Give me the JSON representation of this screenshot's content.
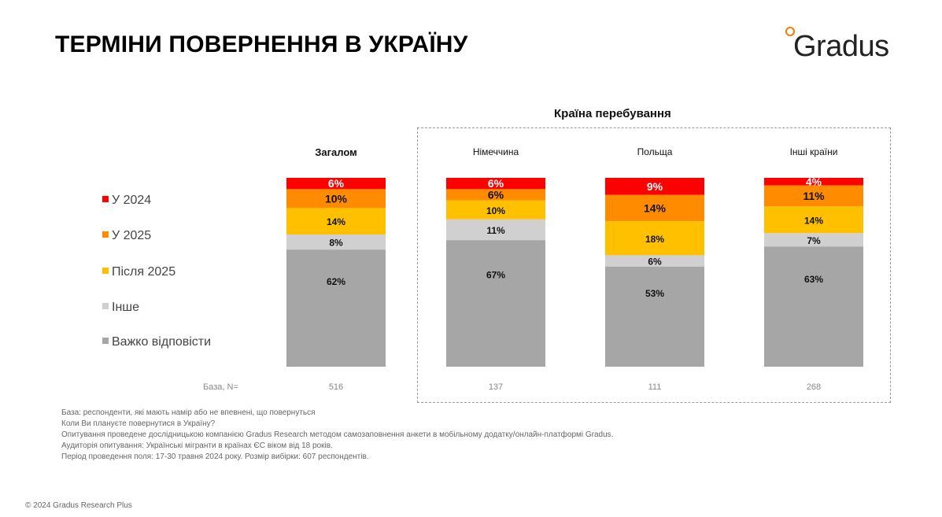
{
  "title": "ТЕРМІНИ ПОВЕРНЕННЯ В УКРАЇНУ",
  "logo_text": "Gradus",
  "country_group_title": "Країна перебування",
  "legend": [
    {
      "label": "У 2024",
      "color": "#ff0000"
    },
    {
      "label": "У 2025",
      "color": "#ff8c00"
    },
    {
      "label": "Після 2025",
      "color": "#ffc000"
    },
    {
      "label": "Інше",
      "color": "#d0d0d0"
    },
    {
      "label": "Важко відповісти",
      "color": "#a6a6a6"
    }
  ],
  "base_label": "База, N=",
  "chart_data": {
    "type": "bar",
    "stacked": true,
    "percent": true,
    "categories": [
      "Загалом",
      "Німеччина",
      "Польща",
      "Інші країни"
    ],
    "series": [
      {
        "name": "У 2024",
        "color": "#ff0000",
        "values": [
          6,
          6,
          9,
          4
        ]
      },
      {
        "name": "У 2025",
        "color": "#ff8c00",
        "values": [
          10,
          6,
          14,
          11
        ]
      },
      {
        "name": "Після 2025",
        "color": "#ffc000",
        "values": [
          14,
          10,
          18,
          14
        ]
      },
      {
        "name": "Інше",
        "color": "#d0d0d0",
        "values": [
          8,
          11,
          6,
          7
        ]
      },
      {
        "name": "Важко відповісти",
        "color": "#a6a6a6",
        "values": [
          62,
          67,
          53,
          63
        ]
      }
    ],
    "base_n": [
      "516",
      "137",
      "111",
      "268"
    ],
    "ylim": [
      0,
      100
    ]
  },
  "notes": [
    "База: респонденти, які мають намір або не впевнені, що повернуться",
    "Коли Ви плануєте повернутися в Україну?",
    "Опитування проведене дослідницькою компанією Gradus Research методом самозаповнення анкети в мобільному додатку/онлайн-платформі Gradus.",
    "Аудиторія опитування: Українські мігранти в країнах ЄС віком від 18 років.",
    "Період проведення поля: 17-30 травня 2024 року. Розмір вибірки: 607 респондентів."
  ],
  "copyright": "© 2024 Gradus Research Plus"
}
